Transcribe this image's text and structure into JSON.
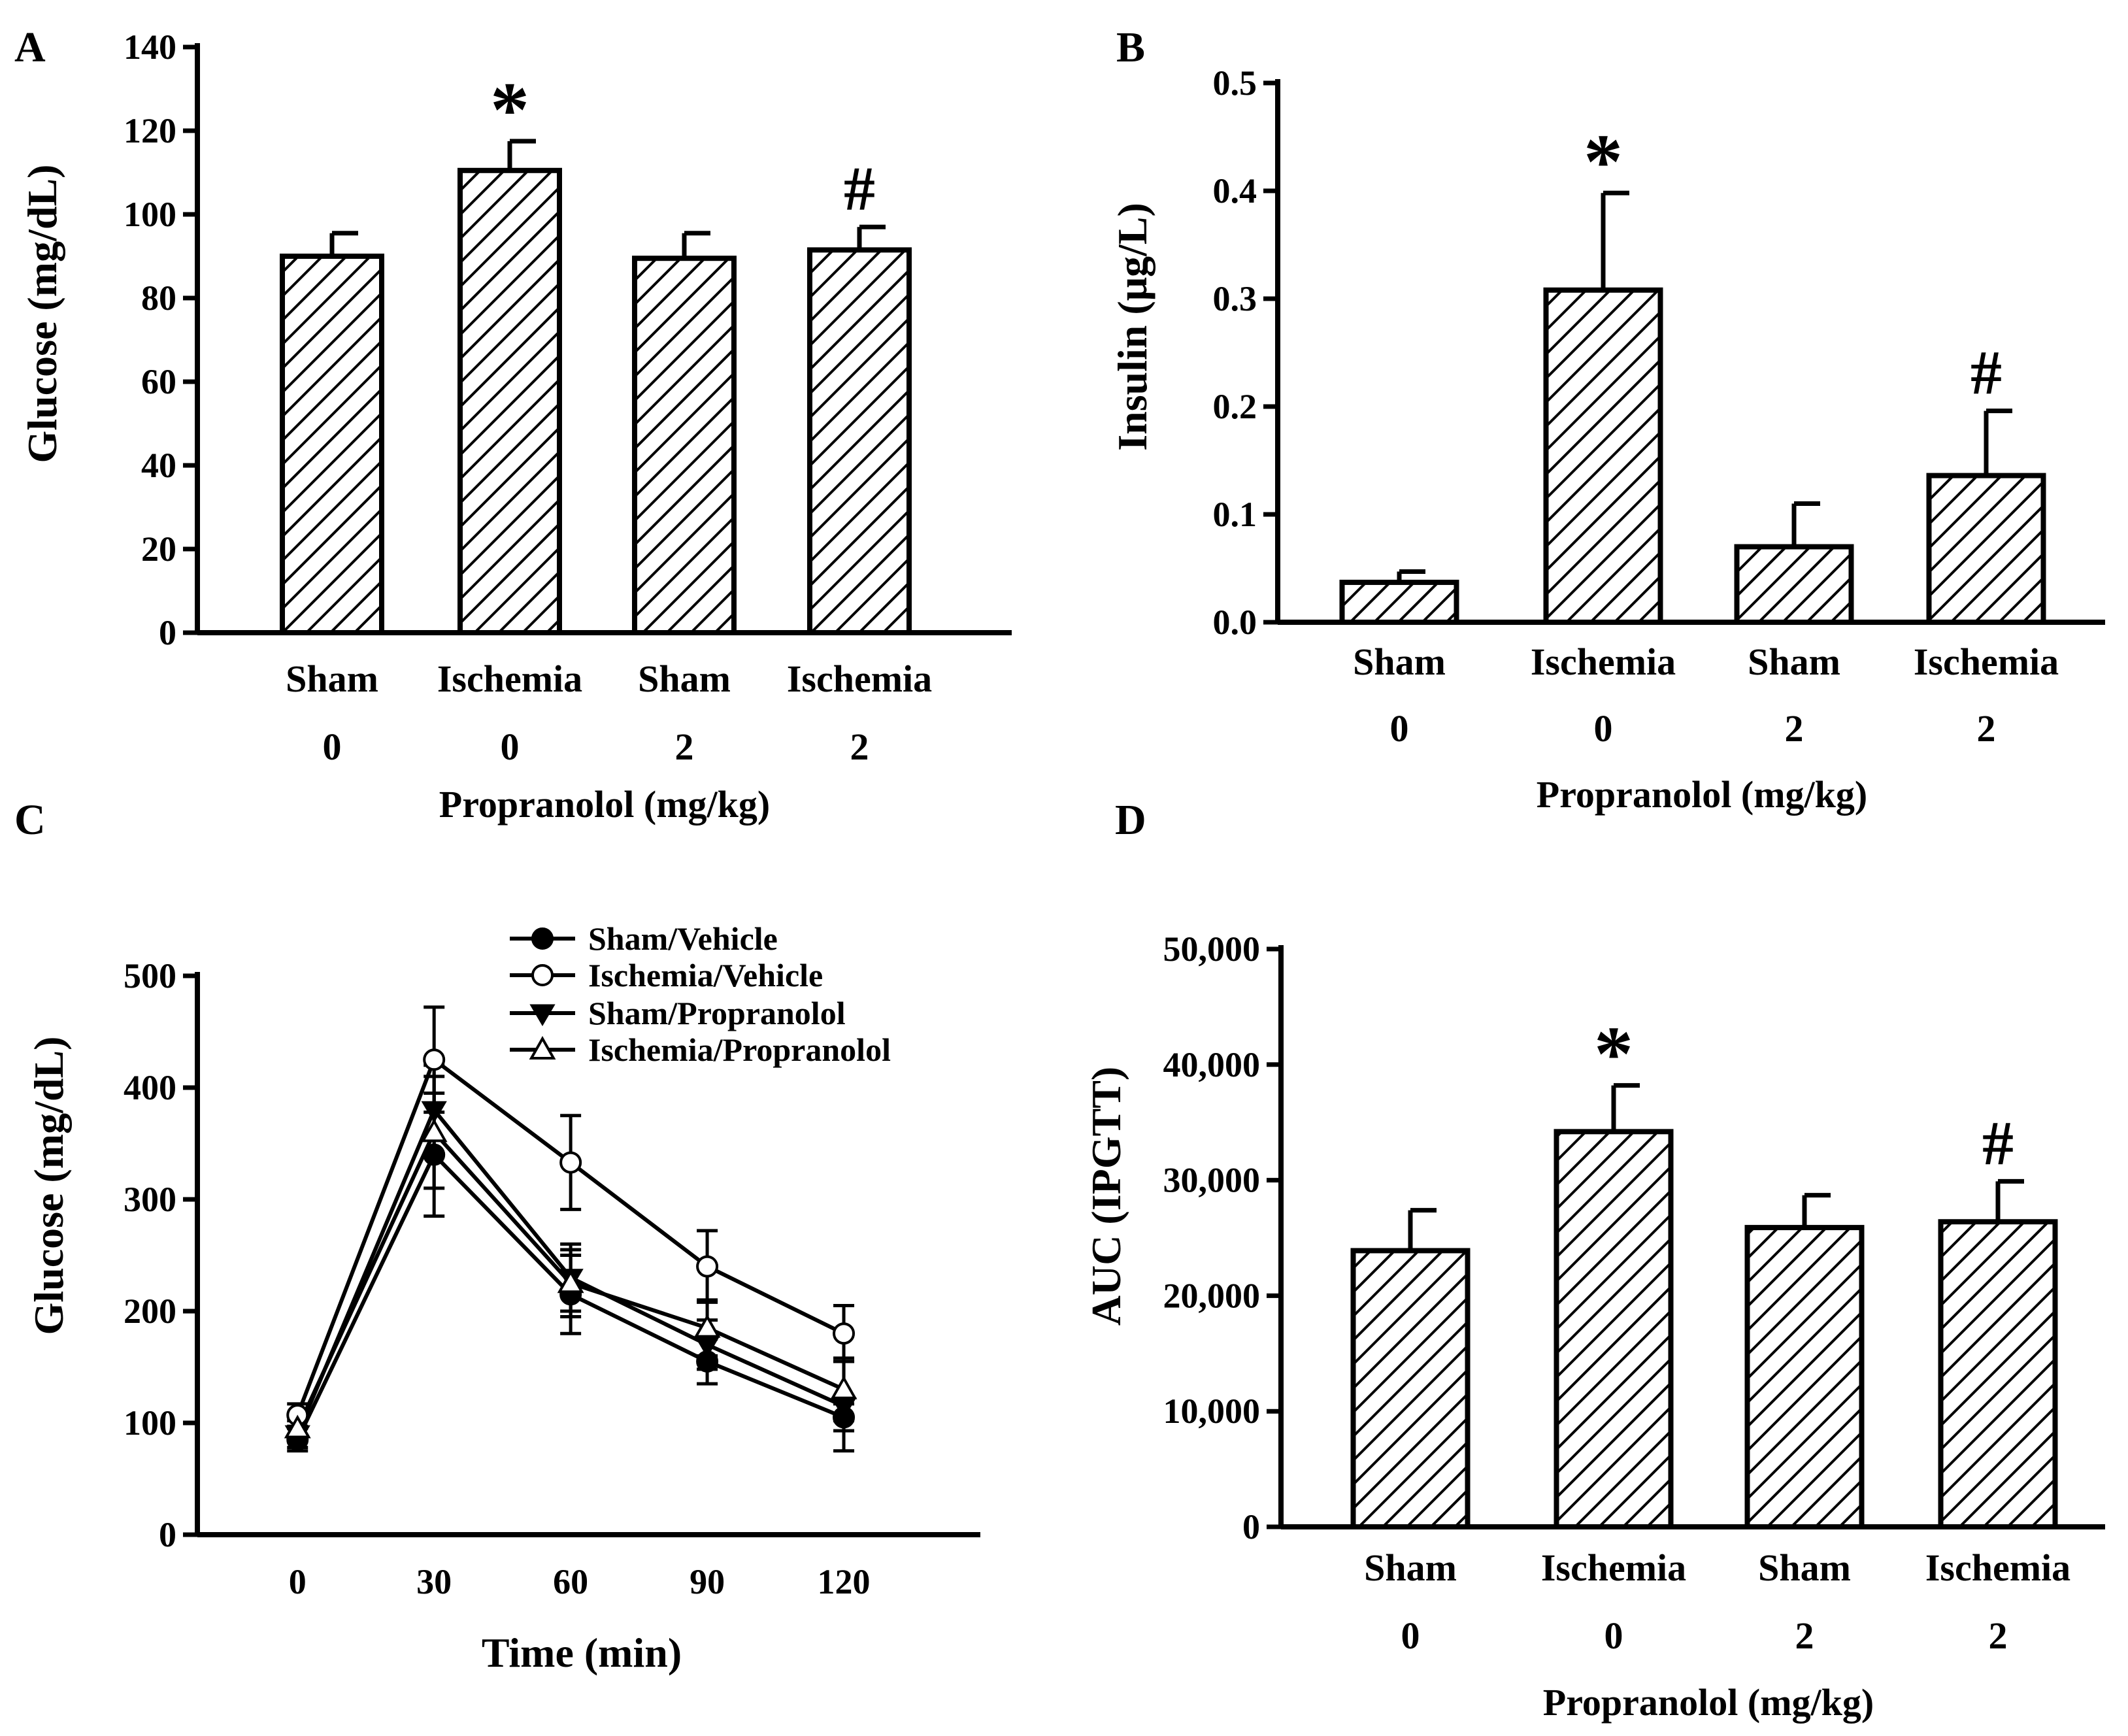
{
  "chart_data": [
    {
      "panel_label": "A",
      "type": "bar",
      "title": "",
      "ylabel": "Glucose  (mg/dL)",
      "xlabel": "Propranolol (mg/kg)",
      "categories": [
        "Sham",
        "Ischemia",
        "Sham",
        "Ischemia"
      ],
      "doses": [
        "0",
        "0",
        "2",
        "2"
      ],
      "values": [
        90,
        110.5,
        89.5,
        91.5
      ],
      "errors": [
        5.5,
        7,
        6,
        5.5
      ],
      "annotations": [
        "",
        "*",
        "",
        "#"
      ],
      "ylim": [
        0,
        140
      ],
      "yticks": [
        0,
        20,
        40,
        60,
        80,
        100,
        120,
        140
      ],
      "ytick_labels": [
        "0",
        "20",
        "40",
        "60",
        "80",
        "100",
        "120",
        "140"
      ]
    },
    {
      "panel_label": "B",
      "type": "bar",
      "title": "",
      "ylabel": "Insulin (μg/L)",
      "xlabel": "Propranolol (mg/kg)",
      "categories": [
        "Sham",
        "Ischemia",
        "Sham",
        "Ischemia"
      ],
      "doses": [
        "0",
        "0",
        "2",
        "2"
      ],
      "values": [
        0.037,
        0.308,
        0.07,
        0.136
      ],
      "errors": [
        0.01,
        0.09,
        0.04,
        0.06
      ],
      "annotations": [
        "",
        "*",
        "",
        "#"
      ],
      "ylim": [
        0,
        0.5
      ],
      "yticks": [
        0,
        0.1,
        0.2,
        0.3,
        0.4,
        0.5
      ],
      "ytick_labels": [
        "0.0",
        "0.1",
        "0.2",
        "0.3",
        "0.4",
        "0.5"
      ]
    },
    {
      "panel_label": "C",
      "type": "line",
      "title": "",
      "ylabel": "Glucose  (mg/dL)",
      "xlabel": "Time (min)",
      "x": [
        0,
        30,
        60,
        90,
        120
      ],
      "xlim": [
        -22,
        150
      ],
      "ylim": [
        0,
        500
      ],
      "xticks": [
        0,
        30,
        60,
        90,
        120
      ],
      "xtick_labels": [
        "0",
        "30",
        "60",
        "90",
        "120"
      ],
      "yticks": [
        0,
        100,
        200,
        300,
        400,
        500
      ],
      "ytick_labels": [
        "0",
        "100",
        "200",
        "300",
        "400",
        "500"
      ],
      "legend_position": "top-right",
      "series": [
        {
          "name": "Sham/Vehicle",
          "marker": "filled-circle",
          "values": [
            85,
            340,
            215,
            155,
            105
          ],
          "errors": [
            10,
            55,
            35,
            20,
            12
          ]
        },
        {
          "name": "Ischemia/Vehicle",
          "marker": "open-circle",
          "values": [
            107,
            425,
            333,
            240,
            180
          ],
          "errors": [
            10,
            47,
            42,
            32,
            25
          ]
        },
        {
          "name": "Sham/Propranolol",
          "marker": "filled-triangle-down",
          "values": [
            90,
            380,
            230,
            170,
            115
          ],
          "errors": [
            12,
            40,
            30,
            22,
            40
          ]
        },
        {
          "name": "Ischemia/Propranolol",
          "marker": "open-triangle-up",
          "values": [
            95,
            360,
            225,
            185,
            130
          ],
          "errors": [
            12,
            50,
            30,
            25,
            28
          ]
        }
      ]
    },
    {
      "panel_label": "D",
      "type": "bar",
      "title": "",
      "ylabel": "AUC (IPGTT)",
      "xlabel": "Propranolol (mg/kg)",
      "categories": [
        "Sham",
        "Ischemia",
        "Sham",
        "Ischemia"
      ],
      "doses": [
        "0",
        "0",
        "2",
        "2"
      ],
      "values": [
        23900,
        34200,
        25900,
        26400
      ],
      "errors": [
        3500,
        4000,
        2800,
        3500
      ],
      "annotations": [
        "",
        "*",
        "",
        "#"
      ],
      "ylim": [
        0,
        50000
      ],
      "yticks": [
        0,
        10000,
        20000,
        30000,
        40000,
        50000
      ],
      "ytick_labels": [
        "0",
        "10,000",
        "20,000",
        "30,000",
        "40,000",
        "50,000"
      ]
    }
  ]
}
